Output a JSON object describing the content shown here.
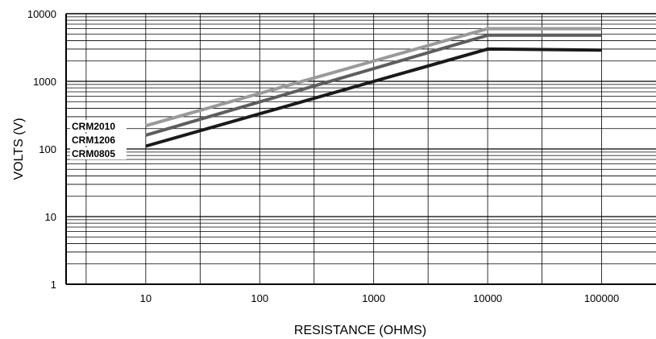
{
  "chart_data": {
    "type": "line",
    "xlabel": "RESISTANCE (OHMS)",
    "ylabel": "VOLTS (V)",
    "xscale": "log",
    "yscale": "log",
    "xlim": [
      2,
      300000
    ],
    "ylim": [
      1,
      10000
    ],
    "x_ticks": [
      "10",
      "100",
      "1000",
      "10000",
      "100000"
    ],
    "y_ticks": [
      "1",
      "10",
      "100",
      "1000",
      "10000"
    ],
    "grid": true,
    "legend": "labels at left end of lines",
    "series": [
      {
        "name": "CRM2010",
        "color": "#9a9a9a",
        "x": [
          10,
          10000,
          100000
        ],
        "y": [
          220,
          6000,
          6000
        ]
      },
      {
        "name": "CRM1206",
        "color": "#5e5e5e",
        "x": [
          10,
          10000,
          100000
        ],
        "y": [
          160,
          4800,
          4800
        ]
      },
      {
        "name": "CRM0805",
        "color": "#1a1a1a",
        "x": [
          10,
          10000,
          100000
        ],
        "y": [
          110,
          3000,
          2900
        ]
      }
    ]
  }
}
